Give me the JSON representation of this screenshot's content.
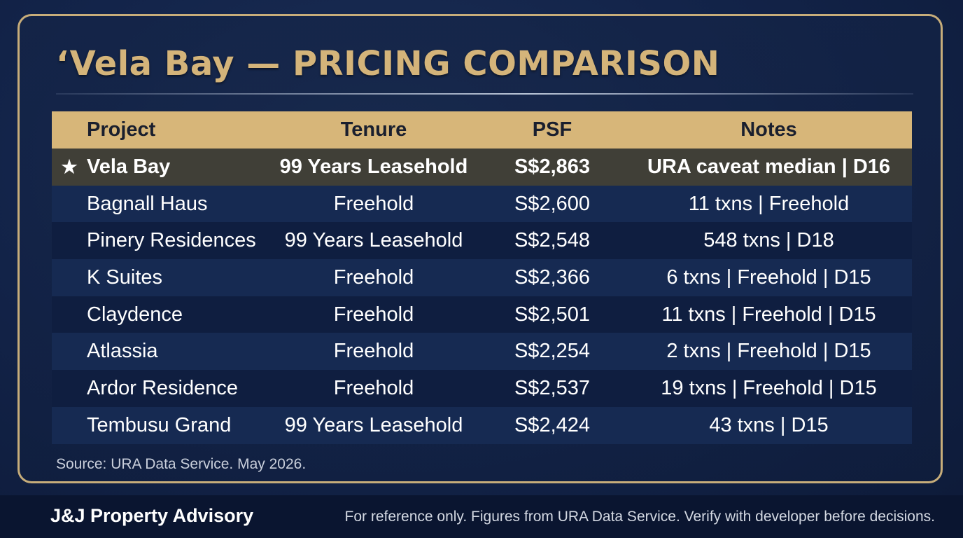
{
  "title": "‘Vela Bay — PRICING COMPARISON",
  "table": {
    "headers": {
      "project": "Project",
      "tenure": "Tenure",
      "psf": "PSF",
      "notes": "Notes"
    },
    "rows": [
      {
        "marker": "★",
        "project": "Vela Bay",
        "tenure": "99 Years Leasehold",
        "psf": "S$2,863",
        "notes": "URA caveat median | D16"
      },
      {
        "marker": "",
        "project": "Bagnall Haus",
        "tenure": "Freehold",
        "psf": "S$2,600",
        "notes": "11 txns | Freehold"
      },
      {
        "marker": "",
        "project": "Pinery Residences",
        "tenure": "99 Years Leasehold",
        "psf": "S$2,548",
        "notes": "548 txns | D18"
      },
      {
        "marker": "",
        "project": "K Suites",
        "tenure": "Freehold",
        "psf": "S$2,366",
        "notes": "6 txns | Freehold | D15"
      },
      {
        "marker": "",
        "project": "Claydence",
        "tenure": "Freehold",
        "psf": "S$2,501",
        "notes": "11 txns | Freehold | D15"
      },
      {
        "marker": "",
        "project": "Atlassia",
        "tenure": "Freehold",
        "psf": "S$2,254",
        "notes": "2 txns | Freehold | D15"
      },
      {
        "marker": "",
        "project": "Ardor Residence",
        "tenure": "Freehold",
        "psf": "S$2,537",
        "notes": "19 txns | Freehold | D15"
      },
      {
        "marker": "",
        "project": "Tembusu Grand",
        "tenure": "99 Years Leasehold",
        "psf": "S$2,424",
        "notes": "43 txns | D15"
      }
    ]
  },
  "source": "Source: URA Data Service. May 2026.",
  "footer": {
    "brand": "J&J Property Advisory",
    "disclaimer": "For reference only. Figures from URA Data Service. Verify with developer before decisions."
  },
  "colors": {
    "accent_gold": "#d4b47a",
    "header_bg": "#d7b679",
    "highlight_row": "#403f37",
    "background": "#13244a"
  }
}
